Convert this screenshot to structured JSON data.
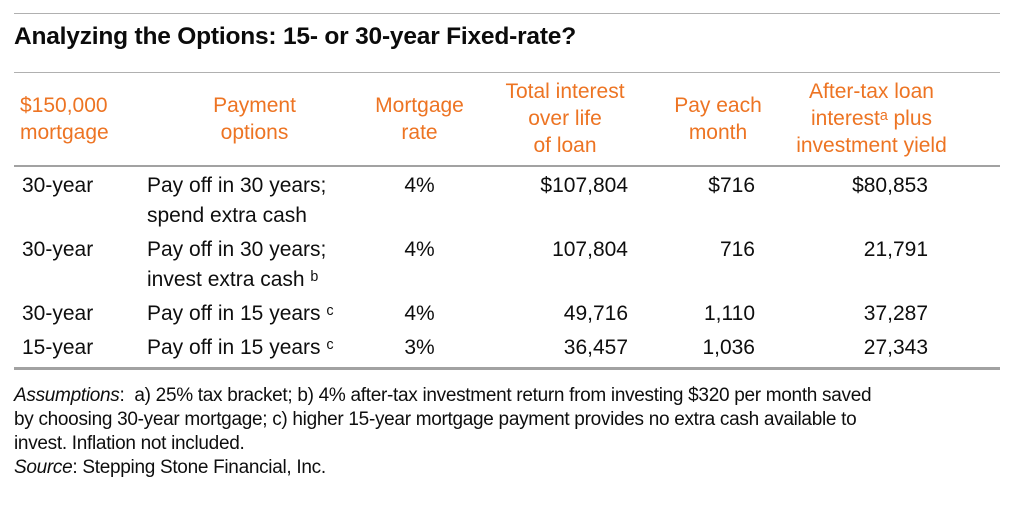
{
  "colors": {
    "accent": "#ED7423",
    "rule": "#A2A2A2",
    "rule_light": "#B0B0B0",
    "text": "#141414"
  },
  "title": "Analyzing the Options: 15- or 30-year Fixed-rate?",
  "table": {
    "columns": [
      {
        "id": "mortgage-amount",
        "label": "$150,000\nmortgage"
      },
      {
        "id": "payment-options",
        "label": "Payment\noptions"
      },
      {
        "id": "mortgage-rate",
        "label": "Mortgage\nrate"
      },
      {
        "id": "total-interest",
        "label": "Total interest\nover life\nof loan"
      },
      {
        "id": "pay-each-month",
        "label": "Pay each\nmonth"
      },
      {
        "id": "after-tax-yield",
        "label": "After-tax loan\ninterestᵃ plus\ninvestment yield"
      }
    ],
    "rows": [
      {
        "term": "30-year",
        "payment_option": "Pay off in 30 years;\nspend extra cash",
        "rate": "4%",
        "total_interest": "$107,804",
        "monthly_payment": "$716",
        "after_tax_yield": "$80,853"
      },
      {
        "term": "30-year",
        "payment_option": "Pay off in 30 years;\ninvest extra cash ᵇ",
        "rate": "4%",
        "total_interest": "107,804",
        "monthly_payment": "716",
        "after_tax_yield": "21,791"
      },
      {
        "term": "30-year",
        "payment_option": "Pay off in 15 years ᶜ",
        "rate": "4%",
        "total_interest": "49,716",
        "monthly_payment": "1,110",
        "after_tax_yield": "37,287"
      },
      {
        "term": "15-year",
        "payment_option": "Pay off in 15 years ᶜ",
        "rate": "3%",
        "total_interest": "36,457",
        "monthly_payment": "1,036",
        "after_tax_yield": "27,343"
      }
    ]
  },
  "footnotes": [
    {
      "label": "Assumptions",
      "text": ":  a) 25% tax bracket; b) 4% after-tax investment return from investing $320 per month saved"
    },
    {
      "text": "by choosing 30-year mortgage; c) higher 15-year mortgage payment provides no extra cash available to"
    },
    {
      "text": "invest. Inflation not included."
    },
    {
      "label": "Source",
      "text": ": Stepping Stone Financial, Inc."
    }
  ]
}
